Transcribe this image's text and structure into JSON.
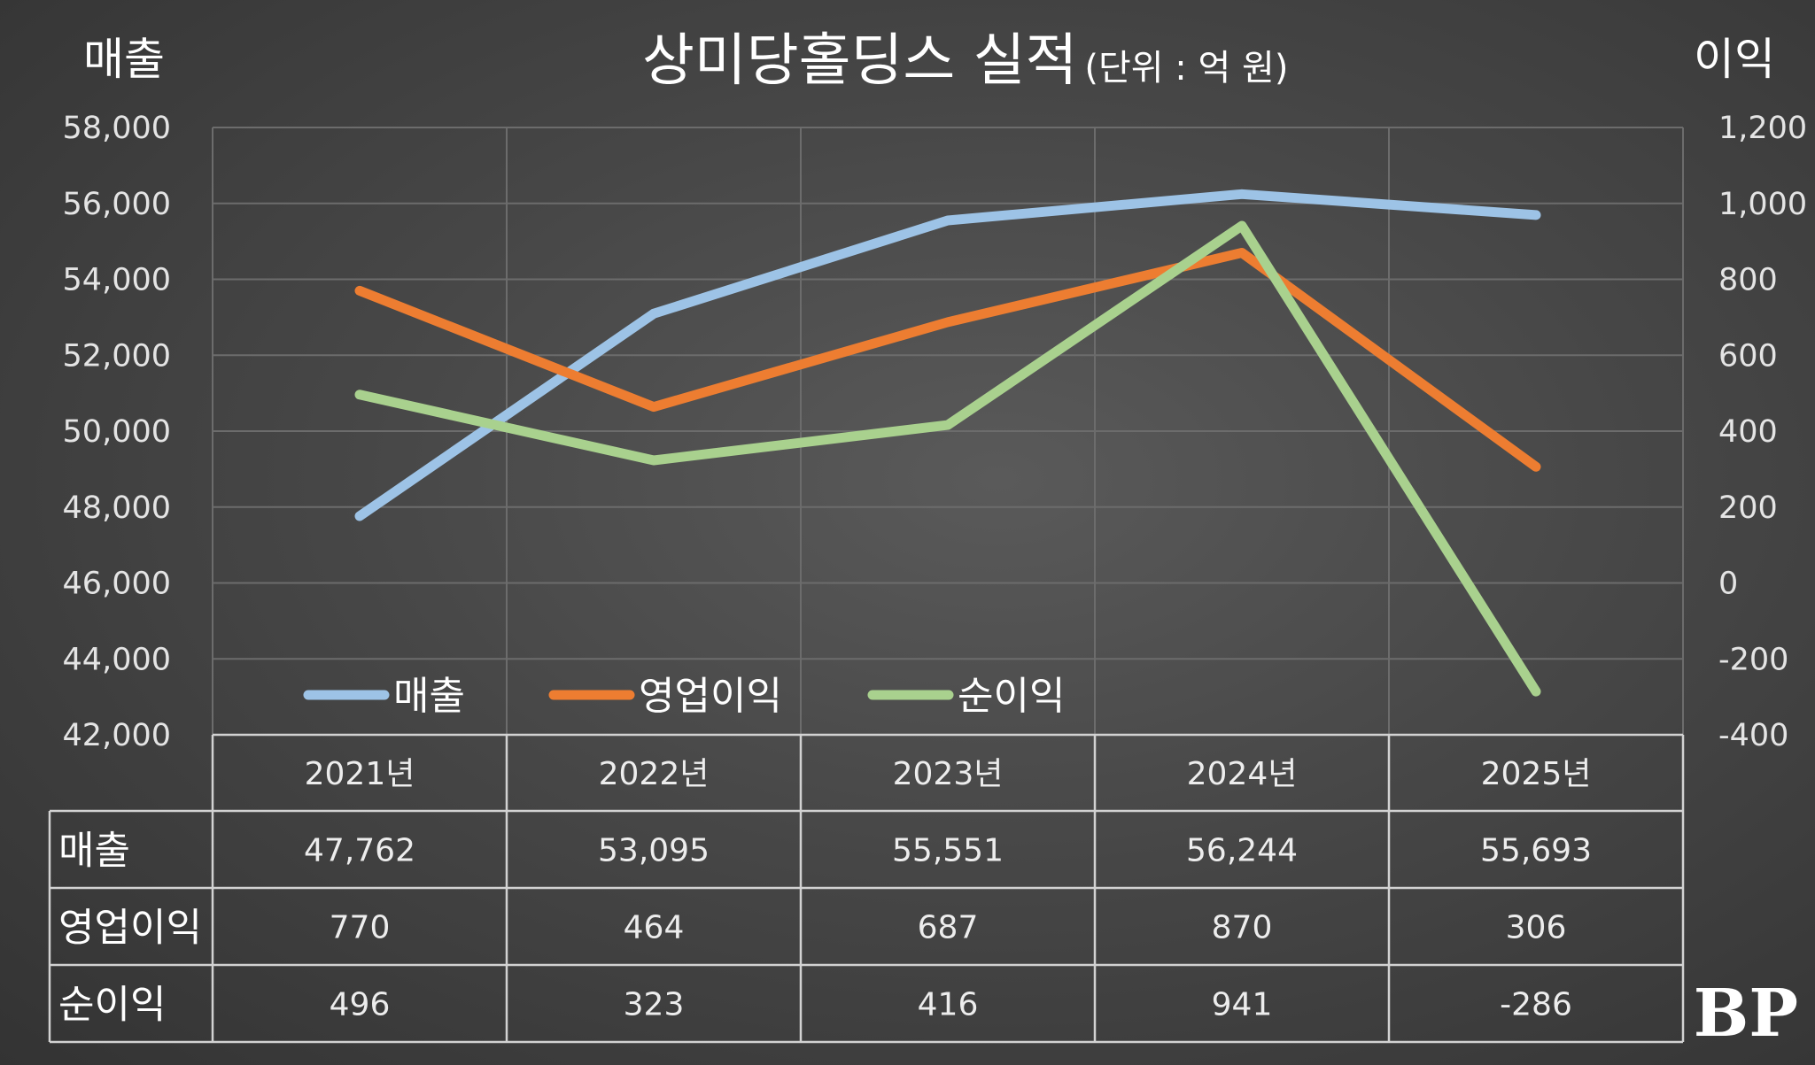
{
  "chart_data": {
    "type": "line",
    "title": "상미당홀딩스 실적",
    "unit_note": "(단위 : 억 원)",
    "left_axis": {
      "label": "매출",
      "ylim": [
        42000,
        58000
      ],
      "ticks": [
        "58,000",
        "56,000",
        "54,000",
        "52,000",
        "50,000",
        "48,000",
        "46,000",
        "44,000",
        "42,000"
      ]
    },
    "right_axis": {
      "label": "이익",
      "ylim": [
        -400,
        1200
      ],
      "ticks": [
        "1,200",
        "1,000",
        "800",
        "600",
        "400",
        "200",
        "0",
        "-200",
        "-400"
      ]
    },
    "categories": [
      "2021년",
      "2022년",
      "2023년",
      "2024년",
      "2025년"
    ],
    "grid": true,
    "legend_position": "bottom-left inside plot",
    "series": [
      {
        "name": "매출",
        "axis": "left",
        "color": "#9dc3e6",
        "values": [
          47762,
          53095,
          55551,
          56244,
          55693
        ],
        "labels": [
          "47,762",
          "53,095",
          "55,551",
          "56,244",
          "55,693"
        ]
      },
      {
        "name": "영업이익",
        "axis": "right",
        "color": "#ed7d31",
        "values": [
          770,
          464,
          687,
          870,
          306
        ],
        "labels": [
          "770",
          "464",
          "687",
          "870",
          "306"
        ]
      },
      {
        "name": "순이익",
        "axis": "right",
        "color": "#a9d18e",
        "values": [
          496,
          323,
          416,
          941,
          -286
        ],
        "labels": [
          "496",
          "323",
          "416",
          "941",
          "-286"
        ]
      }
    ]
  },
  "logo_text": "BP"
}
